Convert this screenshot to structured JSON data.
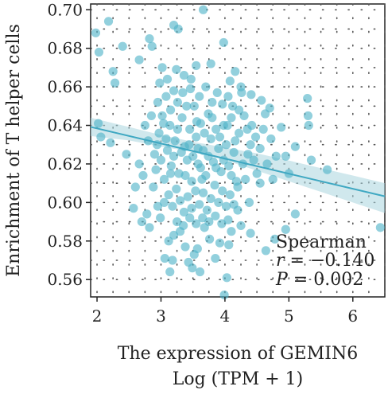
{
  "chart_data": {
    "type": "scatter",
    "title": "",
    "xlabel": "The expression of GEMIN6",
    "xlabel2": "Log (TPM + 1)",
    "ylabel": "Enrichment of T helper cells",
    "xlim": [
      1.9,
      6.5
    ],
    "ylim": [
      0.551,
      0.703
    ],
    "xticks": [
      2,
      3,
      4,
      5,
      6
    ],
    "yticks": [
      0.56,
      0.58,
      0.6,
      0.62,
      0.64,
      0.66,
      0.68,
      0.7
    ],
    "xtick_labels": [
      "2",
      "3",
      "4",
      "5",
      "6"
    ],
    "ytick_labels": [
      "0.56",
      "0.58",
      "0.60",
      "0.62",
      "0.64",
      "0.66",
      "0.68",
      "0.70"
    ],
    "grid": "dotted",
    "point_color": "#4fb3c8",
    "line_color": "#3fa8c2",
    "band_color": "#a9d6df",
    "regression": {
      "x": [
        1.9,
        6.5
      ],
      "y": [
        0.6392,
        0.6032
      ]
    },
    "confidence_band": {
      "x": [
        1.9,
        2.5,
        3.0,
        3.5,
        4.0,
        4.5,
        5.0,
        5.5,
        6.0,
        6.5
      ],
      "lower": [
        0.6345,
        0.6322,
        0.629,
        0.6262,
        0.622,
        0.6165,
        0.611,
        0.6055,
        0.6,
        0.5945
      ],
      "upper": [
        0.644,
        0.6392,
        0.635,
        0.6315,
        0.6285,
        0.6255,
        0.6218,
        0.6178,
        0.614,
        0.61
      ]
    },
    "annotation": {
      "title": "Spearman",
      "r_label": "r",
      "r_text": " = −0.140",
      "p_label": "P",
      "p_text": " = 0.002"
    },
    "points": [
      [
        1.98,
        0.688
      ],
      [
        2.03,
        0.678
      ],
      [
        2.18,
        0.694
      ],
      [
        2.06,
        0.634
      ],
      [
        2.21,
        0.631
      ],
      [
        2.02,
        0.641
      ],
      [
        2.25,
        0.668
      ],
      [
        2.28,
        0.662
      ],
      [
        2.4,
        0.681
      ],
      [
        2.46,
        0.625
      ],
      [
        2.66,
        0.674
      ],
      [
        2.82,
        0.685
      ],
      [
        2.86,
        0.681
      ],
      [
        3.2,
        0.692
      ],
      [
        3.27,
        0.69
      ],
      [
        3.02,
        0.67
      ],
      [
        3.24,
        0.669
      ],
      [
        3.66,
        0.7
      ],
      [
        2.95,
        0.652
      ],
      [
        3.08,
        0.655
      ],
      [
        3.15,
        0.648
      ],
      [
        3.36,
        0.666
      ],
      [
        3.47,
        0.664
      ],
      [
        3.55,
        0.671
      ],
      [
        3.78,
        0.672
      ],
      [
        3.98,
        0.683
      ],
      [
        4.08,
        0.663
      ],
      [
        4.16,
        0.668
      ],
      [
        4.25,
        0.66
      ],
      [
        4.41,
        0.656
      ],
      [
        4.57,
        0.653
      ],
      [
        4.63,
        0.646
      ],
      [
        4.7,
        0.649
      ],
      [
        5.29,
        0.654
      ],
      [
        5.3,
        0.645
      ],
      [
        5.31,
        0.64
      ],
      [
        4.88,
        0.639
      ],
      [
        4.72,
        0.633
      ],
      [
        5.1,
        0.629
      ],
      [
        4.55,
        0.628
      ],
      [
        4.95,
        0.624
      ],
      [
        5.6,
        0.617
      ],
      [
        5.35,
        0.622
      ],
      [
        6.43,
        0.587
      ],
      [
        5.1,
        0.594
      ],
      [
        4.95,
        0.586
      ],
      [
        4.78,
        0.581
      ],
      [
        4.64,
        0.575
      ],
      [
        4.38,
        0.6
      ],
      [
        4.2,
        0.596
      ],
      [
        4.06,
        0.578
      ],
      [
        3.92,
        0.579
      ],
      [
        3.85,
        0.571
      ],
      [
        3.76,
        0.581
      ],
      [
        3.68,
        0.587
      ],
      [
        3.57,
        0.576
      ],
      [
        3.49,
        0.566
      ],
      [
        3.43,
        0.569
      ],
      [
        3.38,
        0.577
      ],
      [
        3.3,
        0.585
      ],
      [
        3.2,
        0.583
      ],
      [
        3.12,
        0.58
      ],
      [
        3.06,
        0.571
      ],
      [
        2.99,
        0.592
      ],
      [
        2.82,
        0.587
      ],
      [
        2.78,
        0.594
      ],
      [
        2.7,
        0.59
      ],
      [
        2.88,
        0.608
      ],
      [
        2.72,
        0.614
      ],
      [
        2.6,
        0.608
      ],
      [
        2.57,
        0.597
      ],
      [
        2.66,
        0.62
      ],
      [
        3.18,
        0.57
      ],
      [
        3.99,
        0.552
      ],
      [
        3.14,
        0.564
      ],
      [
        4.03,
        0.561
      ],
      [
        3.61,
        0.564
      ],
      [
        3.52,
        0.573
      ],
      [
        2.97,
        0.636
      ],
      [
        3.04,
        0.641
      ],
      [
        3.1,
        0.627
      ],
      [
        3.16,
        0.619
      ],
      [
        3.22,
        0.632
      ],
      [
        3.28,
        0.615
      ],
      [
        3.33,
        0.644
      ],
      [
        3.37,
        0.629
      ],
      [
        3.41,
        0.622
      ],
      [
        3.45,
        0.638
      ],
      [
        3.48,
        0.611
      ],
      [
        3.52,
        0.65
      ],
      [
        3.55,
        0.634
      ],
      [
        3.58,
        0.62
      ],
      [
        3.62,
        0.641
      ],
      [
        3.66,
        0.627
      ],
      [
        3.7,
        0.614
      ],
      [
        3.74,
        0.646
      ],
      [
        3.78,
        0.633
      ],
      [
        3.82,
        0.621
      ],
      [
        3.86,
        0.638
      ],
      [
        3.9,
        0.628
      ],
      [
        3.94,
        0.616
      ],
      [
        3.98,
        0.64
      ],
      [
        4.02,
        0.63
      ],
      [
        4.06,
        0.619
      ],
      [
        4.1,
        0.644
      ],
      [
        4.14,
        0.626
      ],
      [
        4.18,
        0.611
      ],
      [
        4.22,
        0.636
      ],
      [
        3.05,
        0.612
      ],
      [
        3.12,
        0.604
      ],
      [
        3.18,
        0.598
      ],
      [
        3.24,
        0.607
      ],
      [
        3.3,
        0.601
      ],
      [
        3.36,
        0.595
      ],
      [
        3.42,
        0.603
      ],
      [
        3.48,
        0.597
      ],
      [
        3.54,
        0.606
      ],
      [
        3.6,
        0.599
      ],
      [
        3.66,
        0.605
      ],
      [
        3.72,
        0.596
      ],
      [
        3.78,
        0.602
      ],
      [
        3.84,
        0.609
      ],
      [
        3.9,
        0.6
      ],
      [
        3.96,
        0.606
      ],
      [
        4.02,
        0.598
      ],
      [
        4.08,
        0.604
      ],
      [
        4.14,
        0.599
      ],
      [
        4.2,
        0.608
      ],
      [
        3.2,
        0.658
      ],
      [
        3.26,
        0.652
      ],
      [
        3.34,
        0.657
      ],
      [
        3.4,
        0.65
      ],
      [
        3.46,
        0.659
      ],
      [
        3.6,
        0.655
      ],
      [
        3.7,
        0.66
      ],
      [
        3.8,
        0.652
      ],
      [
        3.88,
        0.657
      ],
      [
        3.96,
        0.651
      ],
      [
        4.05,
        0.655
      ],
      [
        4.12,
        0.65
      ],
      [
        4.3,
        0.645
      ],
      [
        4.35,
        0.638
      ],
      [
        4.4,
        0.63
      ],
      [
        4.45,
        0.622
      ],
      [
        4.5,
        0.615
      ],
      [
        4.32,
        0.612
      ],
      [
        4.28,
        0.62
      ],
      [
        4.36,
        0.625
      ],
      [
        4.42,
        0.64
      ],
      [
        4.48,
        0.634
      ],
      [
        2.9,
        0.625
      ],
      [
        2.92,
        0.617
      ],
      [
        2.94,
        0.63
      ],
      [
        3.0,
        0.622
      ],
      [
        3.02,
        0.645
      ],
      [
        3.08,
        0.633
      ],
      [
        3.14,
        0.64
      ],
      [
        3.2,
        0.624
      ],
      [
        3.26,
        0.638
      ],
      [
        3.32,
        0.626
      ],
      [
        3.38,
        0.614
      ],
      [
        3.44,
        0.63
      ],
      [
        3.5,
        0.624
      ],
      [
        3.56,
        0.642
      ],
      [
        3.62,
        0.618
      ],
      [
        3.68,
        0.636
      ],
      [
        3.74,
        0.624
      ],
      [
        3.8,
        0.644
      ],
      [
        3.86,
        0.618
      ],
      [
        3.92,
        0.634
      ],
      [
        3.98,
        0.622
      ],
      [
        4.04,
        0.64
      ],
      [
        4.1,
        0.614
      ],
      [
        4.16,
        0.632
      ],
      [
        3.25,
        0.59
      ],
      [
        3.35,
        0.588
      ],
      [
        3.45,
        0.592
      ],
      [
        3.55,
        0.589
      ],
      [
        3.65,
        0.592
      ],
      [
        3.75,
        0.59
      ],
      [
        3.85,
        0.593
      ],
      [
        3.95,
        0.589
      ],
      [
        4.05,
        0.591
      ],
      [
        2.85,
        0.645
      ],
      [
        2.8,
        0.632
      ],
      [
        2.75,
        0.64
      ],
      [
        2.98,
        0.662
      ],
      [
        3.1,
        0.664
      ],
      [
        4.22,
        0.648
      ],
      [
        4.26,
        0.657
      ],
      [
        4.6,
        0.638
      ],
      [
        4.55,
        0.61
      ],
      [
        4.66,
        0.62
      ],
      [
        4.75,
        0.612
      ],
      [
        4.8,
        0.624
      ],
      [
        5.0,
        0.615
      ],
      [
        4.1,
        0.585
      ],
      [
        4.25,
        0.588
      ],
      [
        4.4,
        0.584
      ],
      [
        3.05,
        0.6
      ],
      [
        2.95,
        0.598
      ],
      [
        3.15,
        0.615
      ],
      [
        3.58,
        0.628
      ],
      [
        3.64,
        0.612
      ]
    ]
  }
}
